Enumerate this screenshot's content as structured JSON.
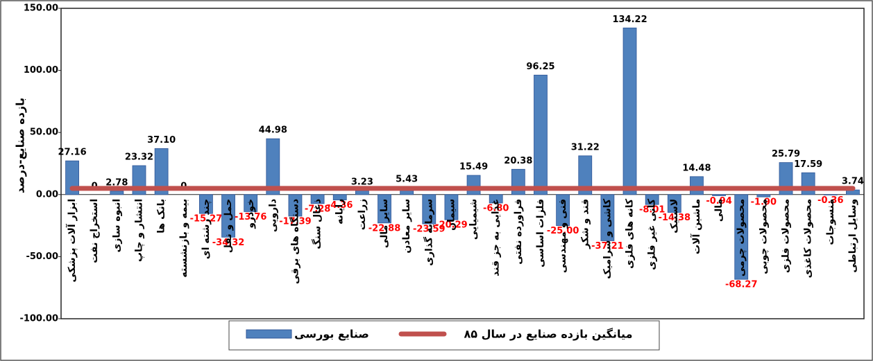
{
  "chart_data": {
    "type": "bar",
    "y_axis_label": "بازده صنایع-درصد",
    "categories": [
      "ابزار آلات پزشکی",
      "استخراج نفت",
      "انبوه سازی",
      "انتشار و چاپ",
      "بانک ها",
      "بیمه و بازنشسته",
      "چند رشته ای",
      "حمل و نقل",
      "خودرو",
      "دارویی",
      "دستگاه های برقی",
      "ذغال سنگ",
      "رایانه",
      "زراعت",
      "سایر مالی",
      "سایر معادن",
      "سرمایه گذاری",
      "سیمان",
      "شیمیایی",
      "غذایی به جز قند",
      "فراورده نفتی",
      "فلزات اساسی",
      "فنی و مهندسی",
      "قند و شکر",
      "کاشی و سرامیک",
      "کانه های فلزی",
      "کانی غیر فلزی",
      "لاستیک",
      "ماشین آلات",
      "مالی",
      "محصولات چرمی",
      "محصولات چوبی",
      "محصولات فلزی",
      "محصولات کاغذی",
      "منسوجات",
      "وسایل ارتباطی"
    ],
    "series": [
      {
        "name": "صنایع بورسی",
        "color": "#4f81bd",
        "values": [
          27.16,
          0,
          2.78,
          23.32,
          37.1,
          0,
          -15.27,
          -34.32,
          -13.76,
          44.98,
          -17.39,
          -7.28,
          -4.36,
          3.23,
          -22.88,
          5.43,
          -23.59,
          -20.29,
          15.49,
          -6.8,
          20.38,
          96.25,
          -25.0,
          31.22,
          -37.21,
          134.22,
          -8.01,
          -14.38,
          14.48,
          -0.94,
          -68.27,
          -1.9,
          25.79,
          17.59,
          -0.36,
          3.74
        ],
        "value_labels": [
          "27.16",
          "0",
          "2.78",
          "23.32",
          "37.10",
          "0",
          "-15.27",
          "-34.32",
          "-13.76",
          "44.98",
          "-17.39",
          "-7.28",
          "-4.36",
          "3.23",
          "-22.88",
          "5.43",
          "-23.59",
          "-20.29",
          "15.49",
          "-6.80",
          "20.38",
          "96.25",
          "-25.00",
          "31.22",
          "-37.21",
          "134.22",
          "-8.01",
          "-14.38",
          "14.48",
          "-0.94",
          "-68.27",
          "-1.90",
          "25.79",
          "17.59",
          "-0.36",
          "3.74"
        ]
      }
    ],
    "average": {
      "name": "میانگین بازده صنایع در سال ۸۵",
      "color": "#c0504d",
      "value": 5
    },
    "ylim": [
      -100,
      150
    ],
    "yticks": [
      {
        "value": -100,
        "label": "-100.00"
      },
      {
        "value": -50,
        "label": "-50.00"
      },
      {
        "value": 0,
        "label": "0.00"
      },
      {
        "value": 50,
        "label": "50.00"
      },
      {
        "value": 100,
        "label": "100.00"
      },
      {
        "value": 150,
        "label": "150.00"
      }
    ],
    "grid": false
  }
}
